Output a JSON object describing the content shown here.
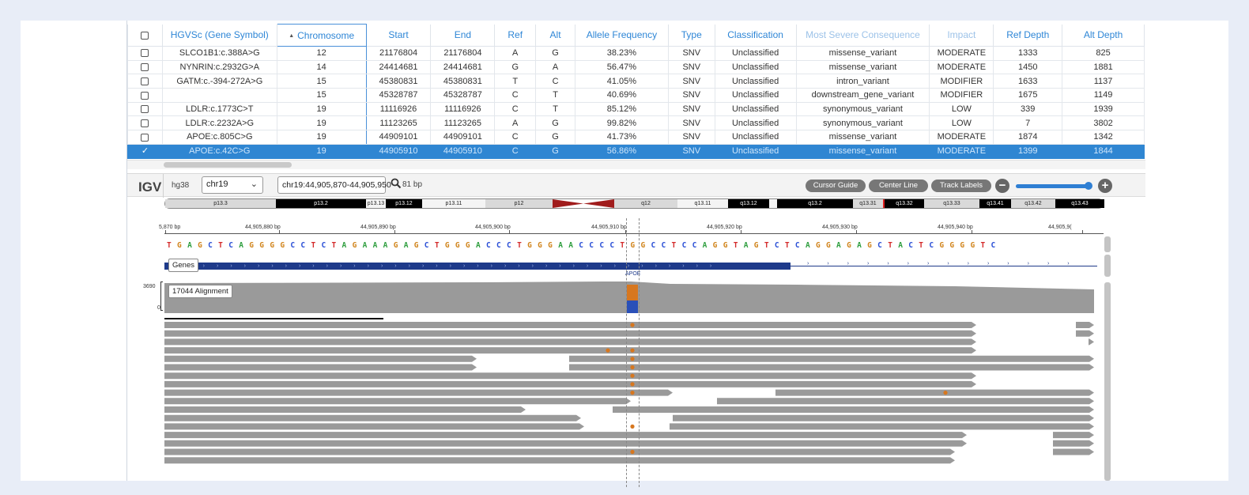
{
  "table": {
    "headers": [
      {
        "key": "select",
        "label": ""
      },
      {
        "key": "hgvsc",
        "label": "HGVSc (Gene Symbol)"
      },
      {
        "key": "chromosome",
        "label": "Chromosome",
        "sort_indicator": "▲"
      },
      {
        "key": "start",
        "label": "Start"
      },
      {
        "key": "end",
        "label": "End"
      },
      {
        "key": "ref",
        "label": "Ref"
      },
      {
        "key": "alt",
        "label": "Alt"
      },
      {
        "key": "af",
        "label": "Allele Frequency"
      },
      {
        "key": "type",
        "label": "Type"
      },
      {
        "key": "classification",
        "label": "Classification"
      },
      {
        "key": "consequence",
        "label": "Most Severe Consequence"
      },
      {
        "key": "impact",
        "label": "Impact"
      },
      {
        "key": "refdepth",
        "label": "Ref Depth"
      },
      {
        "key": "altdepth",
        "label": "Alt Depth"
      }
    ],
    "rows": [
      {
        "hgvsc": "SLCO1B1:c.388A>G",
        "chromosome": "12",
        "start": "21176804",
        "end": "21176804",
        "ref": "A",
        "alt": "G",
        "af": "38.23%",
        "type": "SNV",
        "classification": "Unclassified",
        "consequence": "missense_variant",
        "impact": "MODERATE",
        "refdepth": "1333",
        "altdepth": "825",
        "selected": false
      },
      {
        "hgvsc": "NYNRIN:c.2932G>A",
        "chromosome": "14",
        "start": "24414681",
        "end": "24414681",
        "ref": "G",
        "alt": "A",
        "af": "56.47%",
        "type": "SNV",
        "classification": "Unclassified",
        "consequence": "missense_variant",
        "impact": "MODERATE",
        "refdepth": "1450",
        "altdepth": "1881",
        "selected": false
      },
      {
        "hgvsc": "GATM:c.-394-272A>G",
        "chromosome": "15",
        "start": "45380831",
        "end": "45380831",
        "ref": "T",
        "alt": "C",
        "af": "41.05%",
        "type": "SNV",
        "classification": "Unclassified",
        "consequence": "intron_variant",
        "impact": "MODIFIER",
        "refdepth": "1633",
        "altdepth": "1137",
        "selected": false
      },
      {
        "hgvsc": "",
        "chromosome": "15",
        "start": "45328787",
        "end": "45328787",
        "ref": "C",
        "alt": "T",
        "af": "40.69%",
        "type": "SNV",
        "classification": "Unclassified",
        "consequence": "downstream_gene_variant",
        "impact": "MODIFIER",
        "refdepth": "1675",
        "altdepth": "1149",
        "selected": false
      },
      {
        "hgvsc": "LDLR:c.1773C>T",
        "chromosome": "19",
        "start": "11116926",
        "end": "11116926",
        "ref": "C",
        "alt": "T",
        "af": "85.12%",
        "type": "SNV",
        "classification": "Unclassified",
        "consequence": "synonymous_variant",
        "impact": "LOW",
        "refdepth": "339",
        "altdepth": "1939",
        "selected": false
      },
      {
        "hgvsc": "LDLR:c.2232A>G",
        "chromosome": "19",
        "start": "11123265",
        "end": "11123265",
        "ref": "A",
        "alt": "G",
        "af": "99.82%",
        "type": "SNV",
        "classification": "Unclassified",
        "consequence": "synonymous_variant",
        "impact": "LOW",
        "refdepth": "7",
        "altdepth": "3802",
        "selected": false
      },
      {
        "hgvsc": "APOE:c.805C>G",
        "chromosome": "19",
        "start": "44909101",
        "end": "44909101",
        "ref": "C",
        "alt": "G",
        "af": "41.73%",
        "type": "SNV",
        "classification": "Unclassified",
        "consequence": "missense_variant",
        "impact": "MODERATE",
        "refdepth": "1874",
        "altdepth": "1342",
        "selected": false
      },
      {
        "hgvsc": "APOE:c.42C>G",
        "chromosome": "19",
        "start": "44905910",
        "end": "44905910",
        "ref": "C",
        "alt": "G",
        "af": "56.86%",
        "type": "SNV",
        "classification": "Unclassified",
        "consequence": "missense_variant",
        "impact": "MODERATE",
        "refdepth": "1399",
        "altdepth": "1844",
        "selected": true
      }
    ],
    "selected_check": "✓"
  },
  "igv": {
    "logo": "IGV",
    "genome": "hg38",
    "chromosome": "chr19",
    "locus": "chr19:44,905,870-44,905,950",
    "width_label": "81 bp",
    "buttons": {
      "cursor_guide": "Cursor Guide",
      "center_line": "Center Line",
      "track_labels": "Track Labels"
    },
    "zoom_level": 0.95,
    "ideogram_bands": [
      "p13.3",
      "p13.2",
      "p13.13",
      "p13.12",
      "p13.11",
      "p12",
      "q12",
      "q13.11",
      "q13.12",
      "q13.2",
      "q13.31",
      "q13.32",
      "q13.33",
      "q13.41",
      "q13.42",
      "q13.43"
    ],
    "ruler_labels": [
      "5,870 bp",
      "44,905,880 bp",
      "44,905,890 bp",
      "44,905,900 bp",
      "44,905,910 bp",
      "44,905,920 bp",
      "44,905,930 bp",
      "44,905,940 bp",
      "44,905,9("
    ],
    "sequence": "TGAGCTCAGGGGCCTCTAGAAAGAGCTGGGACCCTGGGAACCCCTGGCCTCCAGGTAGTCTCAGGAGAGCTACTCGGGGTC",
    "genes_track_label": "Genes",
    "gene_name": "APOE",
    "alignment_track_label": "17044 Alignment",
    "coverage_max": "3690",
    "coverage_min": "0",
    "colors": {
      "A": "#2e9e3e",
      "C": "#2a4fd6",
      "G": "#d1851d",
      "T": "#d42a2a",
      "read": "#9a9a9a",
      "selected_row": "#2f86d2",
      "header_link": "#2e86d6"
    }
  }
}
